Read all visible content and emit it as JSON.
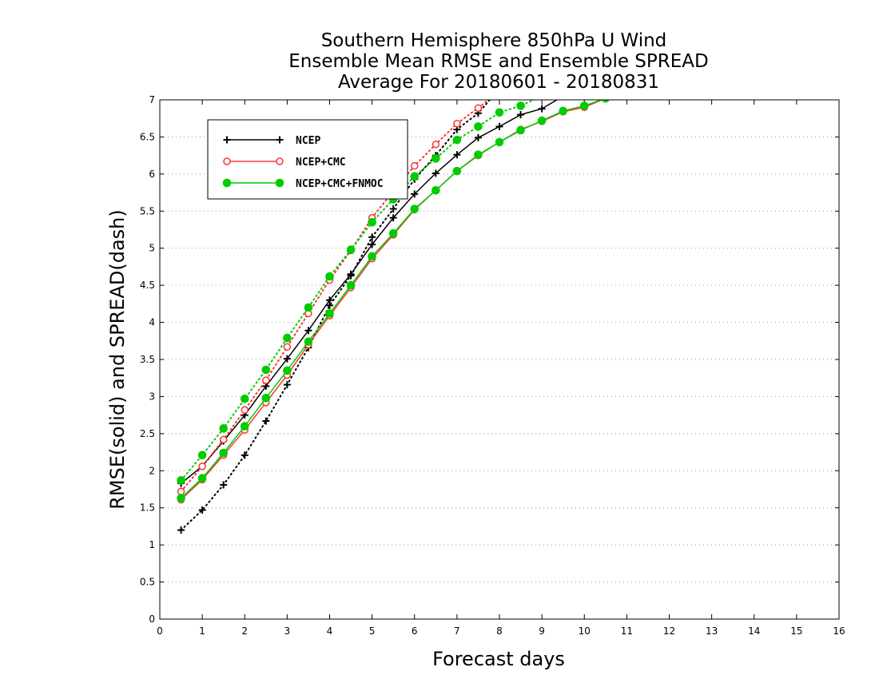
{
  "chart_data": {
    "type": "line",
    "title": [
      "Southern Hemisphere 850hPa U Wind",
      "Ensemble Mean RMSE and Ensemble SPREAD",
      "Average For 20180601 - 20180831"
    ],
    "xlabel": "Forecast days",
    "ylabel": "RMSE(solid) and SPREAD(dash)",
    "xlim": [
      0,
      16
    ],
    "ylim": [
      0,
      7
    ],
    "xticks": [
      "0",
      "1",
      "2",
      "3",
      "4",
      "5",
      "6",
      "7",
      "8",
      "9",
      "10",
      "11",
      "12",
      "13",
      "14",
      "15",
      "16"
    ],
    "yticks": [
      "0",
      "0.5",
      "1",
      "1.5",
      "2",
      "2.5",
      "3",
      "3.5",
      "4",
      "4.5",
      "5",
      "5.5",
      "6",
      "6.5",
      "7"
    ],
    "grid": "horizontal dotted",
    "legend": {
      "placement": "top-left",
      "entries": [
        "NCEP",
        "NCEP+CMC",
        "NCEP+CMC+FNMOC"
      ]
    },
    "series": [
      {
        "name": "NCEP",
        "metric": "RMSE",
        "style": "solid",
        "marker": "plus",
        "color": "#000000",
        "x": [
          0.5,
          1,
          1.5,
          2,
          2.5,
          3,
          3.5,
          4,
          4.5,
          5,
          5.5,
          6,
          6.5,
          7,
          7.5,
          8,
          8.5,
          9,
          9.5,
          10,
          10.5
        ],
        "y": [
          1.83,
          2.06,
          2.4,
          2.75,
          3.14,
          3.51,
          3.89,
          4.3,
          4.65,
          5.05,
          5.41,
          5.73,
          6.01,
          6.26,
          6.49,
          6.64,
          6.8,
          6.88,
          7.05,
          7.18,
          7.3
        ]
      },
      {
        "name": "NCEP",
        "metric": "SPREAD",
        "style": "dotted",
        "marker": "plus",
        "color": "#000000",
        "x": [
          0.5,
          1,
          1.5,
          2,
          2.5,
          3,
          3.5,
          4,
          4.5,
          5,
          5.5,
          6,
          6.5,
          7,
          7.5,
          8
        ],
        "y": [
          1.2,
          1.47,
          1.81,
          2.21,
          2.67,
          3.16,
          3.66,
          4.23,
          4.63,
          5.15,
          5.53,
          5.93,
          6.25,
          6.6,
          6.82,
          7.15
        ]
      },
      {
        "name": "NCEP+CMC",
        "metric": "RMSE",
        "style": "solid",
        "marker": "circle",
        "color": "#ff3333",
        "x": [
          0.5,
          1,
          1.5,
          2,
          2.5,
          3,
          3.5,
          4,
          4.5,
          5,
          5.5,
          6,
          6.5,
          7,
          7.5,
          8,
          8.5,
          9,
          9.5,
          10,
          10.5
        ],
        "y": [
          1.61,
          1.88,
          2.21,
          2.55,
          2.92,
          3.29,
          3.7,
          4.09,
          4.47,
          4.86,
          5.18,
          5.52,
          5.78,
          6.04,
          6.25,
          6.43,
          6.6,
          6.71,
          6.84,
          6.9,
          7.02
        ]
      },
      {
        "name": "NCEP+CMC",
        "metric": "SPREAD",
        "style": "dotted",
        "marker": "circle",
        "color": "#ff3333",
        "x": [
          0.5,
          1,
          1.5,
          2,
          2.5,
          3,
          3.5,
          4,
          4.5,
          5,
          5.5,
          6,
          6.5,
          7,
          7.5,
          8
        ],
        "y": [
          1.72,
          2.06,
          2.42,
          2.82,
          3.22,
          3.67,
          4.12,
          4.57,
          4.97,
          5.41,
          5.77,
          6.11,
          6.4,
          6.68,
          6.89,
          7.12
        ]
      },
      {
        "name": "NCEP+CMC+FNMOC",
        "metric": "RMSE",
        "style": "solid",
        "marker": "filled-circle",
        "color": "#00cc00",
        "x": [
          0.5,
          1,
          1.5,
          2,
          2.5,
          3,
          3.5,
          4,
          4.5,
          5,
          5.5,
          6,
          6.5,
          7,
          7.5,
          8,
          8.5,
          9,
          9.5,
          10,
          10.5
        ],
        "y": [
          1.63,
          1.9,
          2.24,
          2.6,
          2.98,
          3.35,
          3.74,
          4.12,
          4.5,
          4.89,
          5.2,
          5.53,
          5.78,
          6.04,
          6.26,
          6.43,
          6.59,
          6.72,
          6.85,
          6.92,
          7.02
        ]
      },
      {
        "name": "NCEP+CMC+FNMOC",
        "metric": "SPREAD",
        "style": "dotted",
        "marker": "filled-circle",
        "color": "#00cc00",
        "x": [
          0.5,
          1,
          1.5,
          2,
          2.5,
          3,
          3.5,
          4,
          4.5,
          5,
          5.5,
          6,
          6.5,
          7,
          7.5,
          8,
          8.5,
          9
        ],
        "y": [
          1.87,
          2.21,
          2.57,
          2.97,
          3.36,
          3.79,
          4.2,
          4.62,
          4.98,
          5.35,
          5.66,
          5.97,
          6.21,
          6.46,
          6.64,
          6.83,
          6.92,
          7.05
        ]
      }
    ]
  }
}
